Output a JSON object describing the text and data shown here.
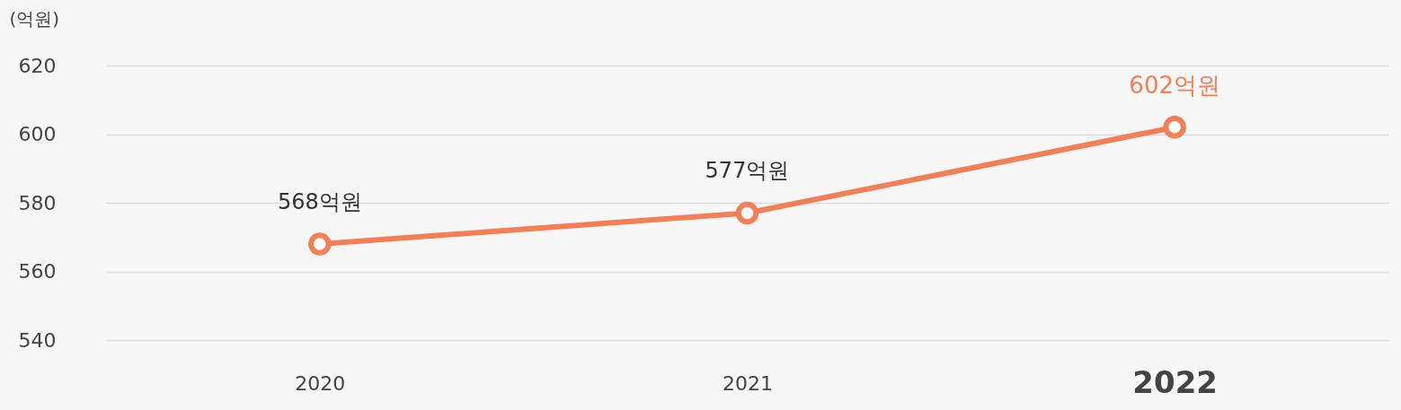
{
  "chart_data": {
    "type": "line",
    "ylabel": "(억원)",
    "categories": [
      "2020",
      "2021",
      "2022"
    ],
    "series": [
      {
        "color": "#f47e55",
        "values": [
          568,
          577,
          602
        ],
        "value_labels": [
          "568억원",
          "577억원",
          "602억원"
        ]
      }
    ],
    "ylim": [
      540,
      620
    ],
    "yticks": [
      540,
      560,
      580,
      600,
      620
    ],
    "grid": "y",
    "marker": "circle",
    "line_style": "solid"
  }
}
